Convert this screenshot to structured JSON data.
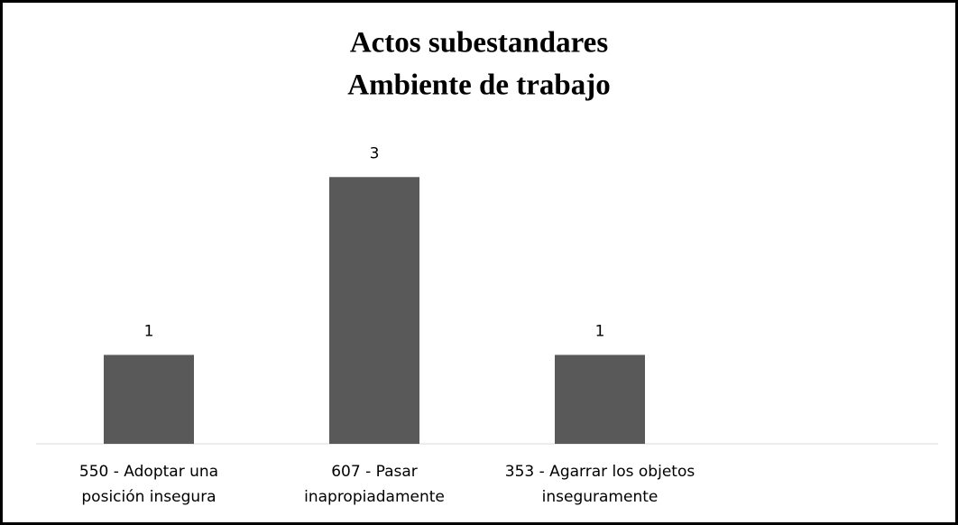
{
  "chart_data": {
    "type": "bar",
    "title": [
      "Actos subestandares",
      "Ambiente de trabajo"
    ],
    "categories": [
      [
        "550 - Adoptar una",
        "posición insegura"
      ],
      [
        "607 - Pasar",
        "inapropiadamente"
      ],
      [
        "353 - Agarrar los objetos",
        "inseguramente"
      ],
      null
    ],
    "values": [
      1,
      3,
      1,
      null
    ],
    "color": "#595959",
    "ylim": [
      0,
      3.5
    ]
  }
}
